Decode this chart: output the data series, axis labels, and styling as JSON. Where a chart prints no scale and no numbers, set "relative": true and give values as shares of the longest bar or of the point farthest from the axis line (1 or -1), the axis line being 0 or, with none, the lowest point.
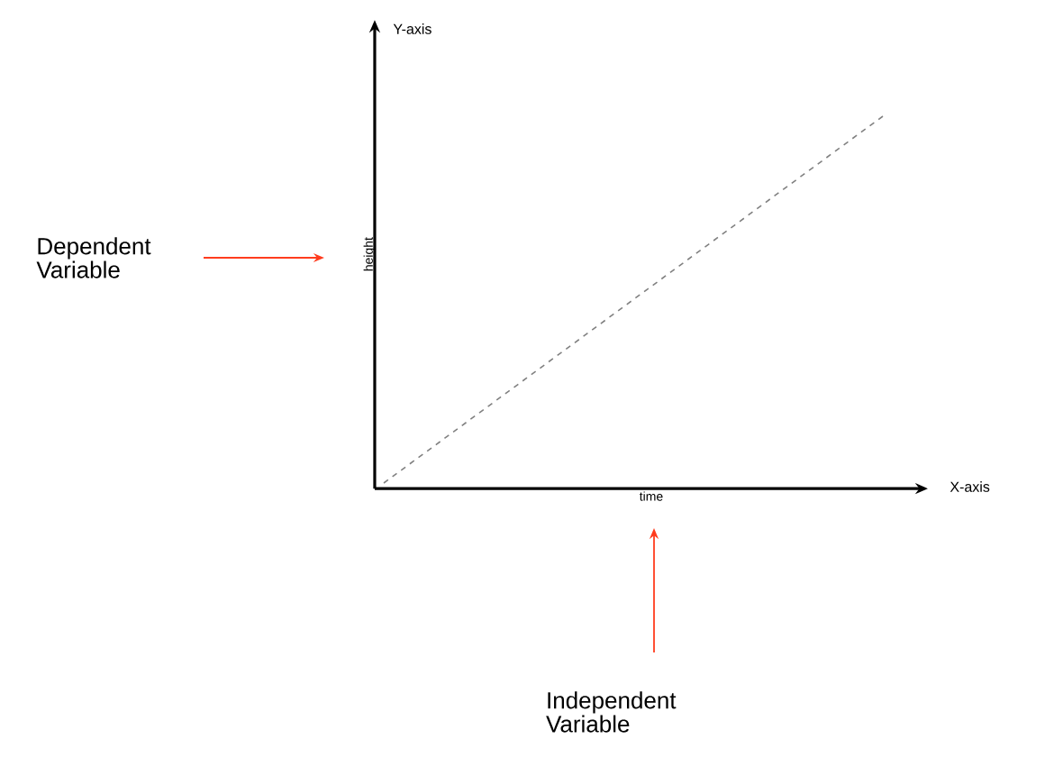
{
  "chart_data": {
    "type": "line",
    "relative": true,
    "xlabel": "time",
    "ylabel": "height",
    "categories": [
      null,
      null
    ],
    "series": [
      {
        "values": [
          0,
          1
        ],
        "color": "#808080",
        "line_style": "dashed"
      }
    ],
    "marker": "none",
    "annotations": [
      "Y-axis",
      "X-axis",
      "Dependent Variable",
      "Independent Variable"
    ]
  }
}
